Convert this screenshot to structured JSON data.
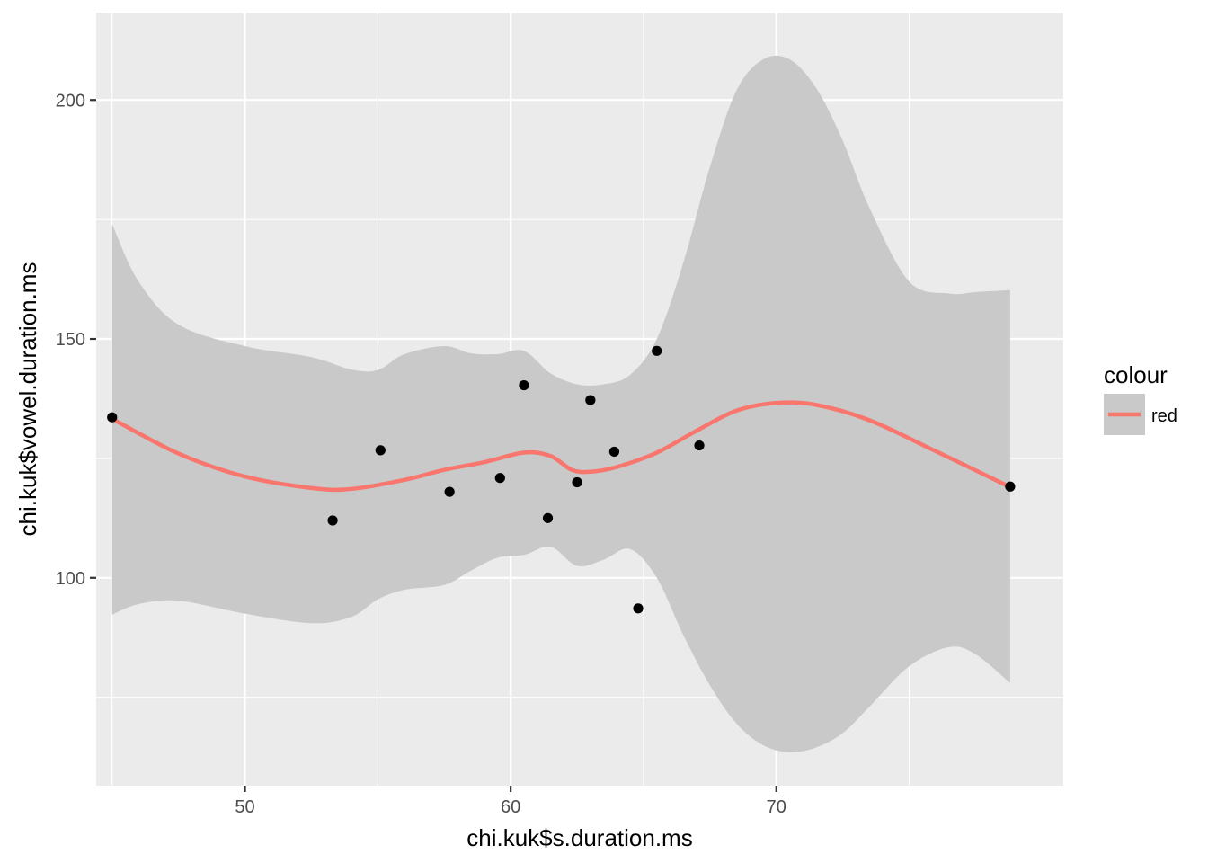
{
  "chart_data": {
    "type": "scatter",
    "xlabel": "chi.kuk$s.duration.ms",
    "ylabel": "chi.kuk$vowel.duration.ms",
    "xlim": [
      44.4,
      80.8
    ],
    "ylim": [
      56.5,
      218.3
    ],
    "x_ticks": [
      50,
      60,
      70
    ],
    "x_tick_labels": [
      "50",
      "60",
      "70"
    ],
    "x_minor_ticks": [
      45,
      55,
      65,
      75
    ],
    "y_ticks": [
      100,
      150,
      200
    ],
    "y_tick_labels": [
      "100",
      "150",
      "200"
    ],
    "y_minor_ticks": [
      75,
      125,
      175
    ],
    "grid": true,
    "legend": {
      "title": "colour",
      "position": "right",
      "entries": [
        {
          "label": "red",
          "color": "#F8766D"
        }
      ]
    },
    "points": [
      {
        "x": 45.0,
        "y": 133.6
      },
      {
        "x": 53.3,
        "y": 112.0
      },
      {
        "x": 55.1,
        "y": 126.7
      },
      {
        "x": 57.7,
        "y": 118.0
      },
      {
        "x": 59.6,
        "y": 120.9
      },
      {
        "x": 60.5,
        "y": 140.3
      },
      {
        "x": 61.4,
        "y": 112.5
      },
      {
        "x": 62.5,
        "y": 120.0
      },
      {
        "x": 63.0,
        "y": 137.2
      },
      {
        "x": 63.9,
        "y": 126.4
      },
      {
        "x": 64.8,
        "y": 93.6
      },
      {
        "x": 65.5,
        "y": 147.5
      },
      {
        "x": 67.1,
        "y": 127.7
      },
      {
        "x": 78.8,
        "y": 119.1
      }
    ],
    "smooth_line": {
      "name": "red",
      "color": "#F8766D",
      "x": [
        45.0,
        47.5,
        50.0,
        52.5,
        54.0,
        56.0,
        57.5,
        59.0,
        60.5,
        61.5,
        62.3,
        63.0,
        64.0,
        65.5,
        67.0,
        68.5,
        70.0,
        71.5,
        73.5,
        76.0,
        78.8
      ],
      "y": [
        133.3,
        126.0,
        121.2,
        118.8,
        118.6,
        120.5,
        122.6,
        124.2,
        126.2,
        125.5,
        122.6,
        122.2,
        123.2,
        126.2,
        130.8,
        135.0,
        136.6,
        136.2,
        133.0,
        126.5,
        119.0
      ]
    },
    "confidence_band": {
      "color": "#C9C9C9",
      "x": [
        45.0,
        46.0,
        47.5,
        50.0,
        52.5,
        54.0,
        55.0,
        56.0,
        57.5,
        58.5,
        59.5,
        60.5,
        61.5,
        62.5,
        63.5,
        64.5,
        65.5,
        66.5,
        67.5,
        68.5,
        69.5,
        70.5,
        71.5,
        72.5,
        73.5,
        75.0,
        76.5,
        77.5,
        78.8
      ],
      "ymin": [
        92.3,
        94.5,
        95.2,
        92.5,
        90.5,
        91.8,
        95.5,
        97.5,
        98.5,
        101.5,
        104.2,
        104.8,
        106.5,
        102.5,
        103.8,
        106.0,
        100.0,
        88.0,
        77.5,
        69.5,
        65.0,
        63.5,
        64.5,
        67.5,
        73.0,
        81.5,
        85.5,
        84.0,
        78.0
      ],
      "ymax": [
        174.0,
        162.0,
        153.0,
        148.5,
        146.2,
        143.6,
        143.5,
        146.8,
        148.5,
        147.0,
        146.8,
        147.5,
        142.8,
        140.5,
        140.5,
        142.5,
        150.0,
        166.0,
        186.0,
        202.0,
        208.5,
        208.5,
        202.5,
        191.5,
        177.5,
        162.0,
        159.5,
        159.8,
        160.2
      ]
    }
  }
}
